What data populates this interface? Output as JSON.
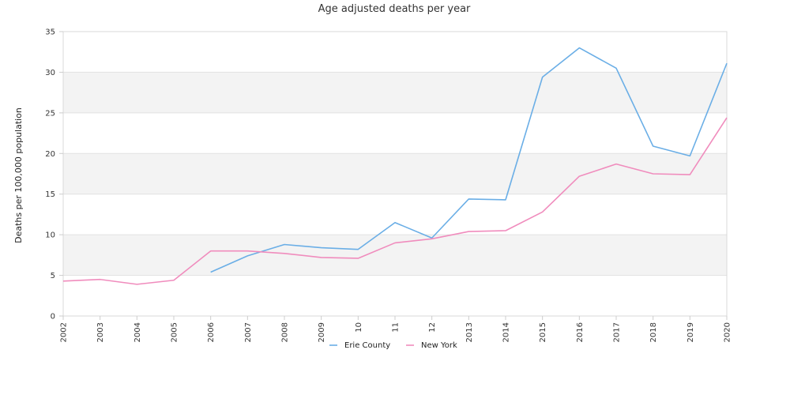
{
  "chart_data": {
    "type": "line",
    "title": "Age adjusted deaths per year",
    "ylabel": "Deaths per 100,000 population",
    "xlabel": "",
    "ylim": [
      0,
      35
    ],
    "yticks": [
      0,
      5,
      10,
      15,
      20,
      25,
      30,
      35
    ],
    "categories": [
      "2002",
      "2003",
      "2004",
      "2005",
      "2006",
      "2007",
      "2008",
      "2009",
      "10",
      "11",
      "12",
      "2013",
      "2014",
      "2015",
      "2016",
      "2017",
      "2018",
      "2019",
      "2020"
    ],
    "grid": "alternating horizontal bands",
    "legend_position": "bottom-center",
    "series": [
      {
        "name": "Erie County",
        "color": "#6aaee6",
        "values": [
          null,
          null,
          null,
          null,
          5.4,
          7.4,
          8.8,
          8.4,
          8.2,
          11.5,
          9.6,
          14.4,
          14.3,
          29.4,
          33.0,
          30.5,
          20.9,
          19.7,
          31.1
        ]
      },
      {
        "name": "New York",
        "color": "#f08cbd",
        "values": [
          4.3,
          4.5,
          3.9,
          4.4,
          8.0,
          8.0,
          7.7,
          7.2,
          7.1,
          9.0,
          9.5,
          10.4,
          10.5,
          12.8,
          17.2,
          18.7,
          17.5,
          17.4,
          24.4
        ]
      }
    ]
  }
}
